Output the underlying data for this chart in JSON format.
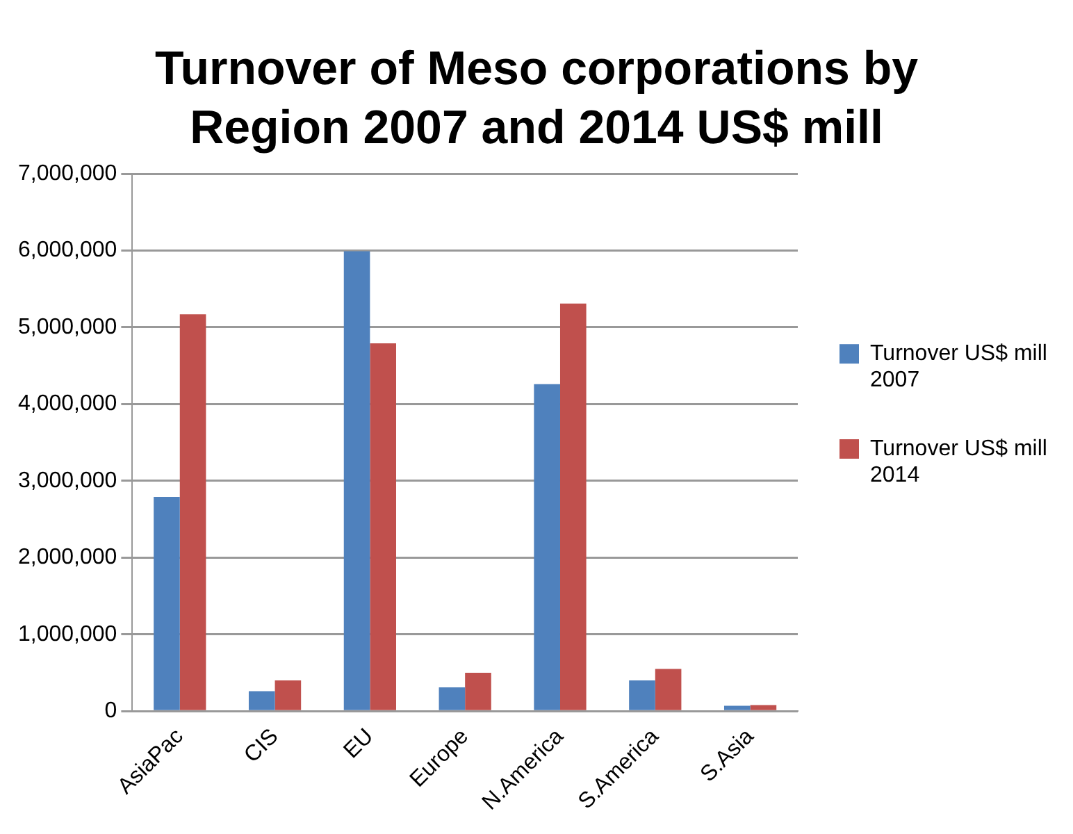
{
  "chart_data": {
    "type": "bar",
    "title": "Turnover of Meso corporations by Region 2007 and 2014 US$ mill",
    "categories": [
      "AsiaPac",
      "CIS",
      "EU",
      "Europe",
      "N.America",
      "S.America",
      "S.Asia"
    ],
    "series": [
      {
        "name": "Turnover US$ mill 2007",
        "color": "#4f81bd",
        "values": [
          2790000,
          260000,
          5990000,
          310000,
          4260000,
          400000,
          70000
        ]
      },
      {
        "name": "Turnover US$ mill 2014",
        "color": "#c0504d",
        "values": [
          5170000,
          400000,
          4790000,
          500000,
          5310000,
          550000,
          80000
        ]
      }
    ],
    "ylim": [
      0,
      7000000
    ],
    "yticks": [
      0,
      {
        "value": 1000000,
        "label": "1,000,000"
      },
      {
        "value": 2000000,
        "label": "2,000,000"
      },
      {
        "value": 3000000,
        "label": "3,000,000"
      },
      {
        "value": 4000000,
        "label": "4,000,000"
      },
      {
        "value": 5000000,
        "label": "5,000,000"
      },
      {
        "value": 6000000,
        "label": "6,000,000"
      },
      {
        "value": 7000000,
        "label": "7,000,000"
      }
    ],
    "grid": "y",
    "legend": "right"
  }
}
